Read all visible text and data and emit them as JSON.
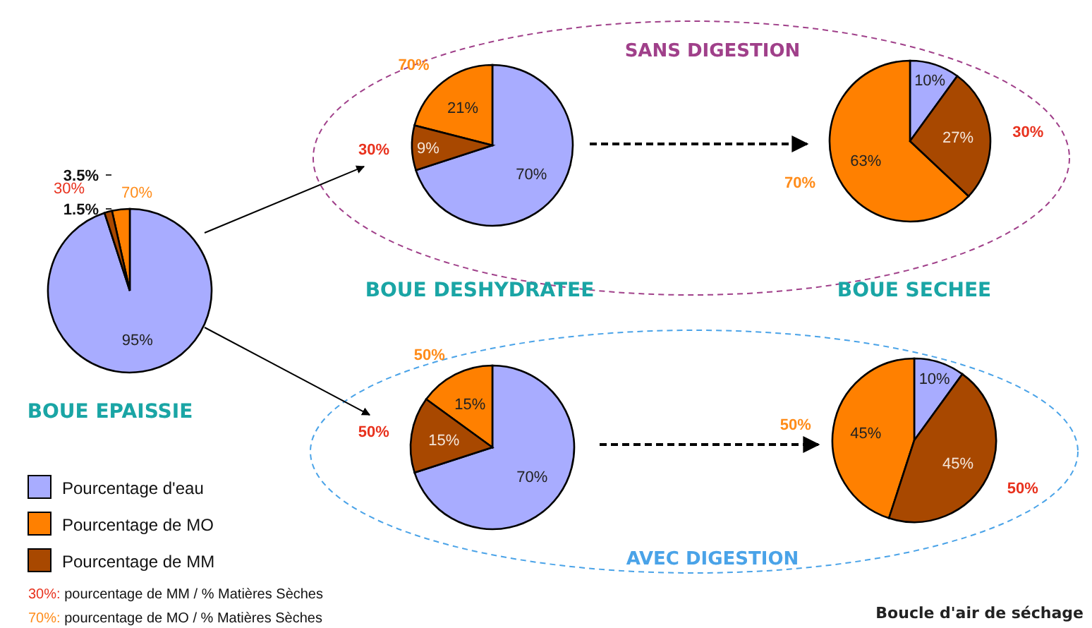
{
  "chart_data": [
    {
      "type": "pie",
      "title": "BOUE EPAISSIE",
      "categories": [
        "Pourcentage d'eau",
        "Pourcentage de MO",
        "Pourcentage de MM"
      ],
      "values": [
        95,
        3.5,
        1.5
      ],
      "colors": [
        "#a8acff",
        "#ff8000",
        "#a84800"
      ],
      "value_labels": [
        "95%",
        "3.5%",
        "1.5%"
      ],
      "legend": "bottom left",
      "annotations": [
        "70%",
        "30%",
        "30%: pourcentage de MM / % Matières Sèches",
        "70%: pourcentage de MO / % Matières Sèches"
      ]
    },
    {
      "type": "pie",
      "title": "BOUE DESHYDRATEE",
      "values": [
        70,
        21,
        9
      ],
      "colors": [
        "#a8acff",
        "#ff8000",
        "#a84800"
      ],
      "value_labels": [
        "70%",
        "21%",
        "9%"
      ],
      "annotations": [
        "70%",
        "30%"
      ]
    },
    {
      "type": "pie",
      "title": "BOUE SECHEE",
      "subtitle": "SANS DIGESTION",
      "values": [
        10,
        63,
        27
      ],
      "colors": [
        "#a8acff",
        "#ff8000",
        "#a84800"
      ],
      "value_labels": [
        "10%",
        "63%",
        "27%"
      ],
      "annotations": [
        "70%",
        "30%"
      ]
    },
    {
      "type": "pie",
      "values": [
        70,
        15,
        15
      ],
      "colors": [
        "#a8acff",
        "#ff8000",
        "#a84800"
      ],
      "value_labels": [
        "70%",
        "15%",
        "15%"
      ],
      "annotations": [
        "50%",
        "50%"
      ]
    },
    {
      "type": "pie",
      "subtitle": "AVEC DIGESTION",
      "values": [
        10,
        45,
        45
      ],
      "colors": [
        "#a8acff",
        "#ff8000",
        "#a84800"
      ],
      "value_labels": [
        "10%",
        "45%",
        "45%"
      ],
      "annotations": [
        "50%",
        "50%",
        "Boucle d'air de séchage"
      ]
    }
  ]
}
